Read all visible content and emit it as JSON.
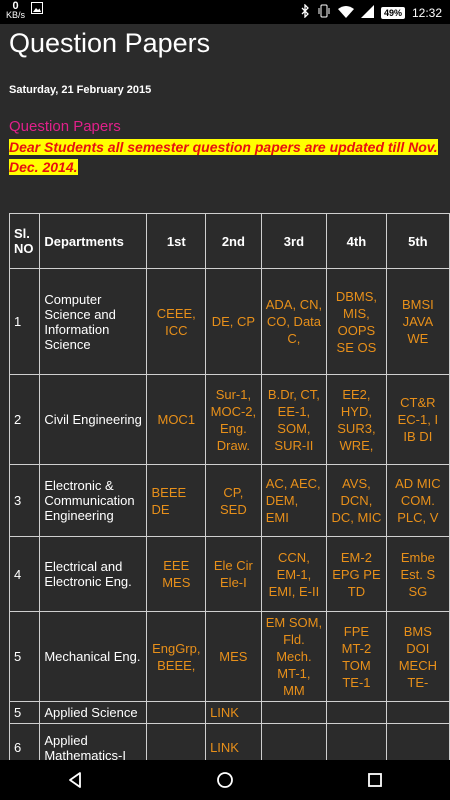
{
  "status_bar": {
    "speed_value": "0",
    "speed_unit": "KB/s",
    "battery": "49%",
    "time": "12:32",
    "icons": [
      "gallery-icon",
      "bluetooth-icon",
      "vibrate-icon",
      "wifi-icon",
      "signal-icon",
      "battery-icon"
    ]
  },
  "page": {
    "title": "Question Papers",
    "date": "Saturday, 21 February 2015",
    "post_title": "Question Papers",
    "notice": "Dear Students all semester question papers are updated till Nov. Dec. 2014."
  },
  "table": {
    "headers": [
      "Sl. NO",
      "Departments",
      "1st",
      "2nd",
      "3rd",
      "4th",
      "5th"
    ],
    "rows": [
      {
        "sl": "1",
        "dept": "Computer Science and Information Science",
        "c1": "CEEE, ICC",
        "c2": "DE, CP",
        "c3": "ADA, CN, CO, Data C,",
        "c4": "DBMS, MIS, OOPS SE OS",
        "c5": "BMSI JAVA WE"
      },
      {
        "sl": "2",
        "dept": "Civil Engineering",
        "c1": "MOC1",
        "c2": "Sur-1, MOC-2, Eng. Draw.",
        "c3": "B.Dr, CT, EE-1, SOM, SUR-II",
        "c4": "EE2, HYD, SUR3, WRE,",
        "c5": "CT&R EC-1, I IB DI"
      },
      {
        "sl": "3",
        "dept": "Electronic & Communication Engineering",
        "c1": "BEEE DE",
        "c2": "CP, SED",
        "c3": "AC, AEC, DEM, EMI",
        "c4": "AVS, DCN, DC, MIC",
        "c5": "AD MIC COM. PLC, V"
      },
      {
        "sl": "4",
        "dept": "Electrical and Electronic Eng.",
        "c1": "EEE MES",
        "c2": "Ele Cir Ele-I",
        "c3": "CCN, EM-1, EMI, E-II",
        "c4": "EM-2 EPG PE TD",
        "c5": "Embe Est. S SG"
      },
      {
        "sl": "5",
        "dept": "Mechanical Eng.",
        "c1": "EngGrp, BEEE,",
        "c2": "MES",
        "c3": "EM SOM, Fld. Mech. MT-1, MM",
        "c4": "FPE MT-2 TOM TE-1",
        "c5": "BMS DOI MECH TE-"
      },
      {
        "sl": "5",
        "dept": "Applied Science",
        "c1": "",
        "c2": "LINK",
        "c3": "",
        "c4": "",
        "c5": ""
      },
      {
        "sl": "6",
        "dept": "Applied Mathematics-I",
        "c1": "",
        "c2": "LINK",
        "c3": "",
        "c4": "",
        "c5": ""
      }
    ]
  },
  "nav": {
    "icons": [
      "back-icon",
      "home-icon",
      "recents-icon"
    ]
  }
}
